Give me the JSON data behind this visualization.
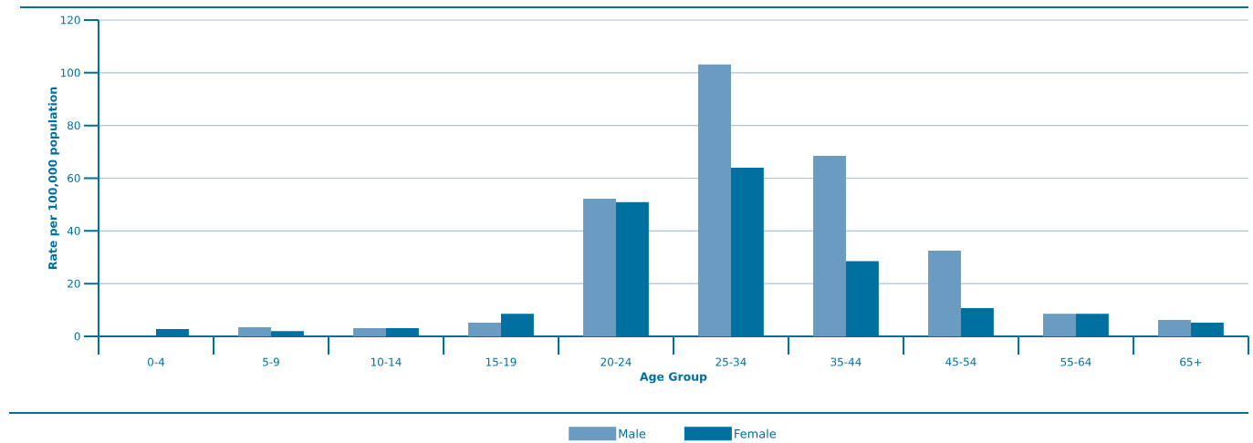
{
  "chart_data": {
    "type": "bar",
    "xlabel": "Age Group",
    "ylabel": "Rate per 100,000 population",
    "categories": [
      "0-4",
      "5-9",
      "10-14",
      "15-19",
      "20-24",
      "25-34",
      "35-44",
      "45-54",
      "55-64",
      "65+"
    ],
    "series": [
      {
        "name": "Male",
        "color": "#6a9bc0",
        "values": [
          0,
          3.5,
          3.1,
          5.2,
          52.2,
          103.1,
          68.5,
          32.5,
          8.6,
          6.2
        ]
      },
      {
        "name": "Female",
        "color": "#0070a0",
        "values": [
          2.8,
          2,
          3.1,
          8.6,
          50.9,
          64,
          28.5,
          10.7,
          8.6,
          5.2
        ]
      }
    ],
    "ylim": [
      0,
      120
    ],
    "yticks": [
      0,
      20,
      40,
      60,
      80,
      100,
      120
    ],
    "grid": "y",
    "legend": "bottom"
  }
}
